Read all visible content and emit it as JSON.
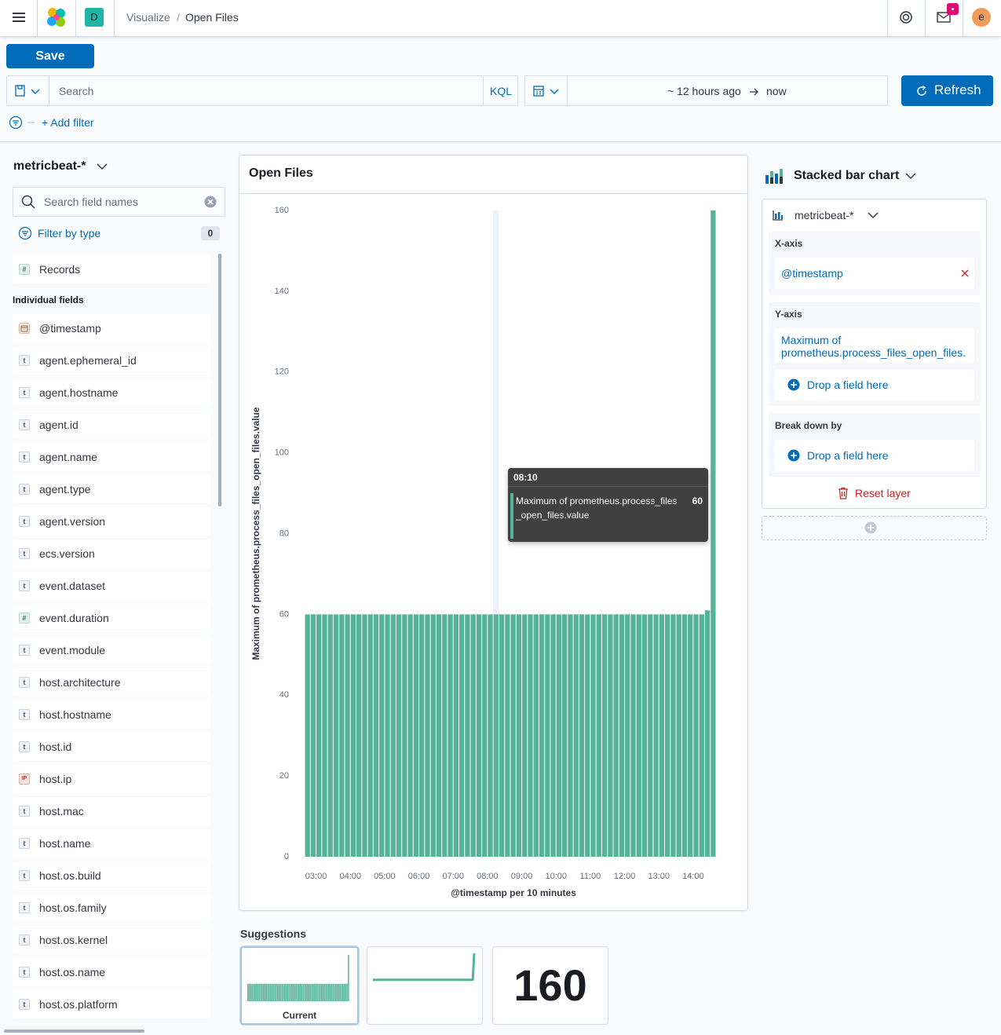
{
  "header": {
    "breadcrumbs": [
      "Visualize",
      "Open Files"
    ],
    "breadcrumb_separator": "/",
    "space_initial": "D",
    "avatar_initial": "e"
  },
  "toolbar": {
    "save": "Save",
    "search_placeholder": "Search",
    "query_language": "KQL",
    "time_start": "~ 12 hours ago",
    "time_end": "now",
    "refresh": "Refresh",
    "add_filter": "+ Add filter"
  },
  "sidebar": {
    "index_pattern": "metricbeat-*",
    "search_placeholder": "Search field names",
    "filter_by_type": "Filter by type",
    "filter_count": 0,
    "type_icons": {
      "string": "t",
      "number": "#",
      "ip": "IP"
    },
    "records": {
      "name": "Records",
      "type": "number"
    },
    "individual_fields_label": "Individual fields",
    "fields": [
      {
        "name": "@timestamp",
        "type": "date"
      },
      {
        "name": "agent.ephemeral_id",
        "type": "string"
      },
      {
        "name": "agent.hostname",
        "type": "string"
      },
      {
        "name": "agent.id",
        "type": "string"
      },
      {
        "name": "agent.name",
        "type": "string"
      },
      {
        "name": "agent.type",
        "type": "string"
      },
      {
        "name": "agent.version",
        "type": "string"
      },
      {
        "name": "ecs.version",
        "type": "string"
      },
      {
        "name": "event.dataset",
        "type": "string"
      },
      {
        "name": "event.duration",
        "type": "number"
      },
      {
        "name": "event.module",
        "type": "string"
      },
      {
        "name": "host.architecture",
        "type": "string"
      },
      {
        "name": "host.hostname",
        "type": "string"
      },
      {
        "name": "host.id",
        "type": "string"
      },
      {
        "name": "host.ip",
        "type": "ip"
      },
      {
        "name": "host.mac",
        "type": "string"
      },
      {
        "name": "host.name",
        "type": "string"
      },
      {
        "name": "host.os.build",
        "type": "string"
      },
      {
        "name": "host.os.family",
        "type": "string"
      },
      {
        "name": "host.os.kernel",
        "type": "string"
      },
      {
        "name": "host.os.name",
        "type": "string"
      },
      {
        "name": "host.os.platform",
        "type": "string"
      }
    ]
  },
  "chart_data": {
    "type": "bar",
    "title": "Open Files",
    "xlabel": "@timestamp per 10 minutes",
    "ylabel": "Maximum of prometheus.process_files_open_files.value",
    "categories": [
      null,
      null,
      "03:00",
      null,
      null,
      null,
      null,
      null,
      "04:00",
      null,
      null,
      null,
      null,
      null,
      "05:00",
      null,
      null,
      null,
      null,
      null,
      "06:00",
      null,
      null,
      null,
      null,
      null,
      "07:00",
      null,
      null,
      null,
      null,
      null,
      "08:00",
      null,
      null,
      null,
      null,
      null,
      "09:00",
      null,
      null,
      null,
      null,
      null,
      "10:00",
      null,
      null,
      null,
      null,
      null,
      "11:00",
      null,
      null,
      null,
      null,
      null,
      "12:00",
      null,
      null,
      null,
      null,
      null,
      "13:00",
      null,
      null,
      null,
      null,
      null,
      "14:00",
      null,
      null,
      null
    ],
    "values": [
      60,
      60,
      60,
      60,
      60,
      60,
      60,
      60,
      60,
      60,
      60,
      60,
      60,
      60,
      60,
      60,
      60,
      60,
      60,
      60,
      60,
      60,
      60,
      60,
      60,
      60,
      60,
      60,
      60,
      60,
      60,
      60,
      60,
      60,
      60,
      60,
      60,
      60,
      60,
      60,
      60,
      60,
      60,
      60,
      60,
      60,
      60,
      60,
      60,
      60,
      60,
      60,
      60,
      60,
      60,
      60,
      60,
      60,
      60,
      60,
      60,
      60,
      60,
      60,
      60,
      60,
      60,
      60,
      60,
      60,
      61,
      160
    ],
    "color": "#54b399",
    "ylim": [
      0,
      160
    ],
    "yticks": [
      0,
      20,
      40,
      60,
      80,
      100,
      120,
      140,
      160
    ],
    "grid": false,
    "tooltip": {
      "title": "08:10",
      "label": "Maximum of prometheus.process_files_open_files.value",
      "value": 60
    }
  },
  "config_panel": {
    "chart_type": "Stacked bar chart",
    "layer_index_pattern": "metricbeat-*",
    "x_axis_label": "X-axis",
    "x_axis_field": "@timestamp",
    "y_axis_label": "Y-axis",
    "y_axis_field": "Maximum of prometheus.process_files_open_files.",
    "y_axis_drop": "Drop a field here",
    "break_down_label": "Break down by",
    "break_down_drop": "Drop a field here",
    "reset_layer": "Reset layer"
  },
  "suggestions": {
    "title": "Suggestions",
    "current_label": "Current",
    "metric_value": 160
  }
}
